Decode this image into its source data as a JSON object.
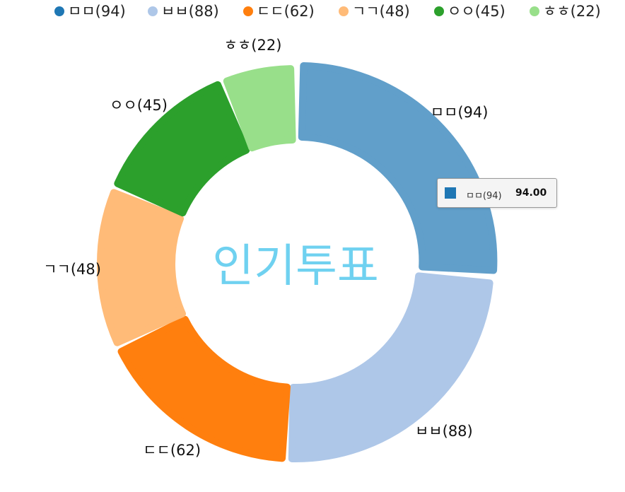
{
  "chart_data": {
    "type": "pie",
    "variant": "donut",
    "title": "인기투표",
    "legend_position": "top",
    "categories": [
      "ㅁㅁ(94)",
      "ㅂㅂ(88)",
      "ㄷㄷ(62)",
      "ㄱㄱ(48)",
      "ㅇㅇ(45)",
      "ㅎㅎ(22)"
    ],
    "values": [
      94,
      88,
      62,
      48,
      45,
      22
    ],
    "colors": [
      "#1f77b4",
      "#aec7e8",
      "#ff7f0e",
      "#ffbb78",
      "#2ca02c",
      "#98df8a"
    ],
    "slice_labels": [
      "ㅁㅁ(94)",
      "ㅂㅂ(88)",
      "ㄷㄷ(62)",
      "ㄱㄱ(48)",
      "ㅇㅇ(45)",
      "ㅎㅎ(22)"
    ],
    "highlighted_index": 0
  },
  "tooltip": {
    "key": "ㅁㅁ(94)",
    "value": "94.00",
    "color": "#1f77b4"
  }
}
